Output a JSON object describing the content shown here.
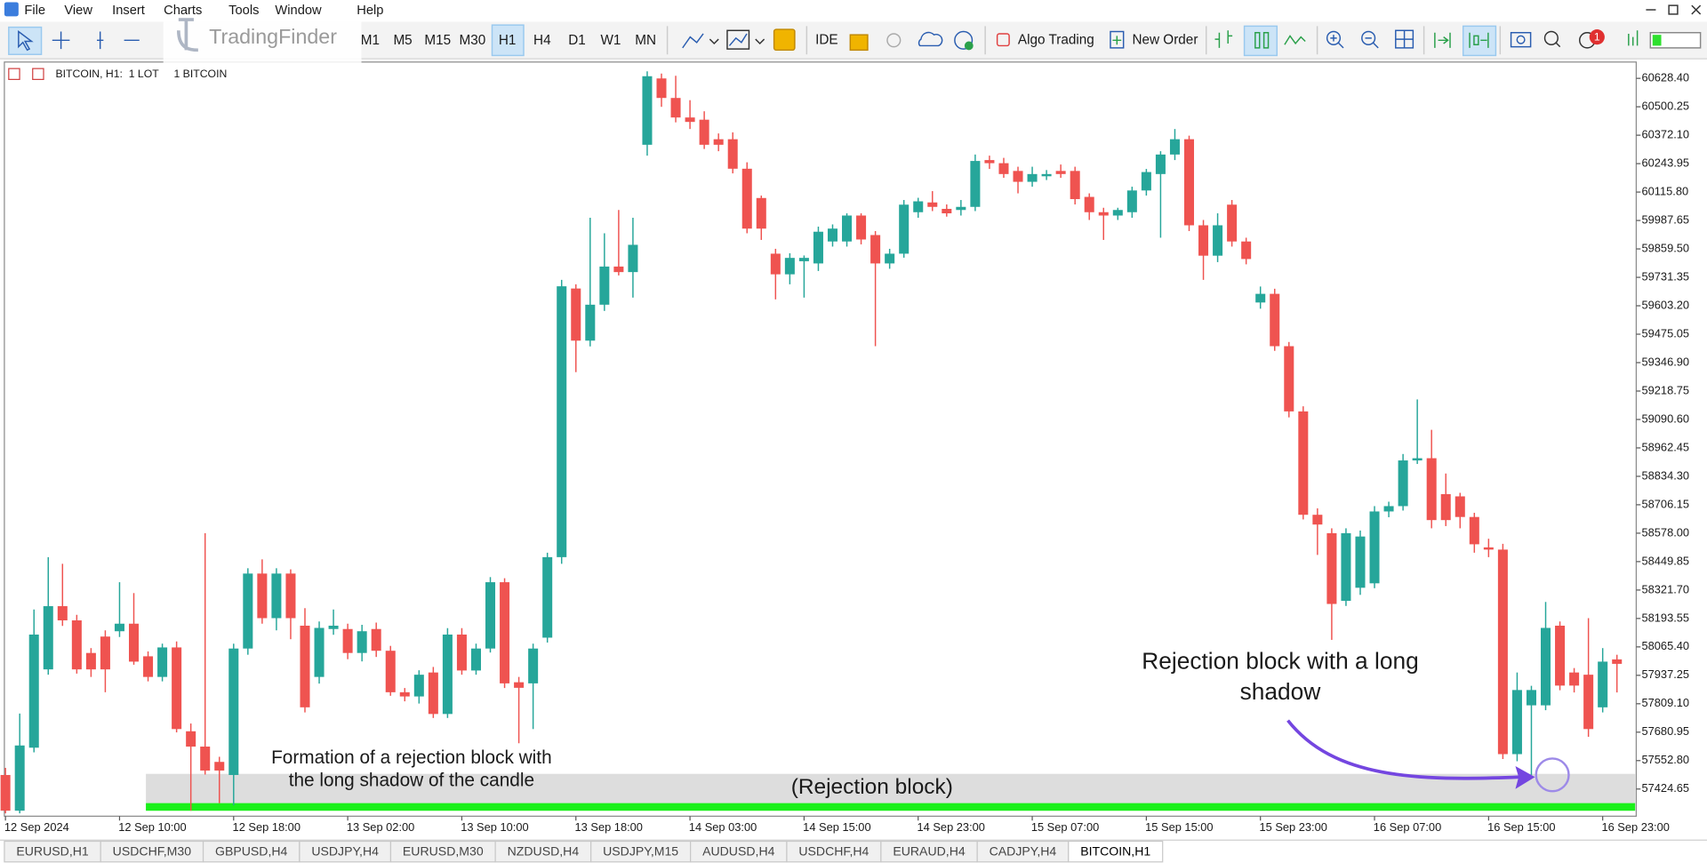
{
  "menu": [
    "File",
    "View",
    "Insert",
    "Charts",
    "Tools",
    "Window",
    "Help"
  ],
  "watermark": "TradingFinder",
  "toolbar": {
    "timeframes": [
      "M1",
      "M5",
      "M15",
      "M30",
      "H1",
      "H4",
      "D1",
      "W1",
      "MN"
    ],
    "ide": "IDE",
    "algo_trading": "Algo Trading",
    "new_order": "New Order",
    "notifications": 1
  },
  "tabs": [
    "EURUSD,H1",
    "USDCHF,M30",
    "GBPUSD,H4",
    "USDJPY,H4",
    "EURUSD,M30",
    "NZDUSD,H4",
    "USDJPY,M15",
    "AUDUSD,H4",
    "USDCHF,H4",
    "EURAUD,H4",
    "CADJPY,H4",
    "BITCOIN,H1"
  ],
  "chart_data": {
    "type": "candlestick",
    "header": "BITCOIN, H1:  1 LOT     1 BITCOIN",
    "up_color": "#26a69a",
    "down_color": "#ef5350",
    "grid": false,
    "ylim": [
      57310,
      60700
    ],
    "yticks": [
      {
        "value": 60628.4,
        "label": "60628.40"
      },
      {
        "value": 60500.25,
        "label": "60500.25"
      },
      {
        "value": 60372.1,
        "label": "60372.10"
      },
      {
        "value": 60243.95,
        "label": "60243.95"
      },
      {
        "value": 60115.8,
        "label": "60115.80"
      },
      {
        "value": 59987.65,
        "label": "59987.65"
      },
      {
        "value": 59859.5,
        "label": "59859.50"
      },
      {
        "value": 59731.35,
        "label": "59731.35"
      },
      {
        "value": 59603.2,
        "label": "59603.20"
      },
      {
        "value": 59475.05,
        "label": "59475.05"
      },
      {
        "value": 59346.9,
        "label": "59346.90"
      },
      {
        "value": 59218.75,
        "label": "59218.75"
      },
      {
        "value": 59090.6,
        "label": "59090.60"
      },
      {
        "value": 58962.45,
        "label": "58962.45"
      },
      {
        "value": 58834.3,
        "label": "58834.30"
      },
      {
        "value": 58706.15,
        "label": "58706.15"
      },
      {
        "value": 58578,
        "label": "58578.00"
      },
      {
        "value": 58449.85,
        "label": "58449.85"
      },
      {
        "value": 58321.7,
        "label": "58321.70"
      },
      {
        "value": 58193.55,
        "label": "58193.55"
      },
      {
        "value": 58065.4,
        "label": "58065.40"
      },
      {
        "value": 57937.25,
        "label": "57937.25"
      },
      {
        "value": 57809.1,
        "label": "57809.10"
      },
      {
        "value": 57680.95,
        "label": "57680.95"
      },
      {
        "value": 57552.8,
        "label": "57552.80"
      },
      {
        "value": 57424.65,
        "label": "57424.65"
      }
    ],
    "categories": [
      "12 Sep 2024",
      null,
      null,
      null,
      null,
      null,
      null,
      null,
      "12 Sep 10:00",
      null,
      null,
      null,
      null,
      null,
      null,
      null,
      "12 Sep 18:00",
      null,
      null,
      null,
      null,
      null,
      null,
      null,
      "13 Sep 02:00",
      null,
      null,
      null,
      null,
      null,
      null,
      null,
      "13 Sep 10:00",
      null,
      null,
      null,
      null,
      null,
      null,
      null,
      "13 Sep 18:00",
      null,
      null,
      null,
      null,
      null,
      null,
      null,
      "14 Sep 03:00",
      null,
      null,
      null,
      null,
      null,
      null,
      null,
      "14 Sep 15:00",
      null,
      null,
      null,
      null,
      null,
      null,
      null,
      "14 Sep 23:00",
      null,
      null,
      null,
      null,
      null,
      null,
      null,
      "15 Sep 07:00",
      null,
      null,
      null,
      null,
      null,
      null,
      null,
      "15 Sep 15:00",
      null,
      null,
      null,
      null,
      null,
      null,
      null,
      "15 Sep 23:00",
      null,
      null,
      null,
      null,
      null,
      null,
      null,
      "16 Sep 07:00",
      null,
      null,
      null,
      null,
      null,
      null,
      null,
      "16 Sep 15:00",
      null,
      null,
      null,
      null,
      null,
      null,
      null,
      "16 Sep 23:00",
      null
    ],
    "open": [
      57488,
      57327,
      57611,
      57964,
      58249,
      58185,
      58038,
      58112,
      58136,
      58170,
      58023,
      57930,
      58063,
      57685,
      57616,
      57547,
      57488,
      58058,
      58396,
      58195,
      58396,
      58161,
      57930,
      58146,
      58146,
      58038,
      58146,
      58048,
      57861,
      57842,
      57950,
      57763,
      58121,
      57959,
      58058,
      58357,
      57906,
      57901,
      58107,
      58470,
      59681,
      59446,
      59608,
      59780,
      59755,
      60329,
      60628,
      60540,
      60452,
      60442,
      60354,
      60354,
      60221,
      60089,
      59838,
      59745,
      59804,
      59794,
      59893,
      59893,
      60010,
      59922,
      59794,
      59838,
      60025,
      60069,
      60040,
      60035,
      60049,
      60260,
      60246,
      60211,
      60162,
      60187,
      60211,
      60211,
      60094,
      60025,
      60010,
      60025,
      60123,
      60197,
      60285,
      60354,
      59966,
      59829,
      60059,
      59893,
      59618,
      59657,
      59421,
      59127,
      58661,
      58578,
      58273,
      58332,
      58352,
      58676,
      58700,
      58906,
      58916,
      58754,
      58744,
      58651,
      58514,
      58504,
      57582,
      57802,
      57802,
      58161,
      57950,
      57940,
      57793,
      58009
    ],
    "high": [
      57520,
      57765,
      58234,
      58470,
      58440,
      58210,
      58060,
      58140,
      58357,
      58308,
      58045,
      58080,
      58090,
      57720,
      58578,
      57570,
      58080,
      58420,
      58460,
      58420,
      58415,
      58240,
      58180,
      58234,
      58170,
      58165,
      58175,
      58070,
      57880,
      57960,
      57975,
      58150,
      58150,
      58080,
      58380,
      58375,
      57930,
      58080,
      58490,
      59720,
      59700,
      60000,
      59930,
      60035,
      60000,
      60660,
      60650,
      60640,
      60530,
      60480,
      60380,
      60385,
      60250,
      60100,
      59860,
      59840,
      59830,
      59960,
      59970,
      60020,
      60020,
      59940,
      59860,
      60080,
      60090,
      60120,
      60060,
      60080,
      60285,
      60280,
      60270,
      60230,
      60230,
      60215,
      60240,
      60230,
      60110,
      60045,
      60045,
      60140,
      60220,
      60300,
      60400,
      60370,
      59990,
      60020,
      60080,
      59910,
      59690,
      59680,
      59440,
      59150,
      58690,
      58600,
      58600,
      58590,
      58700,
      58720,
      58935,
      59181,
      59044,
      58847,
      58760,
      58670,
      58553,
      58530,
      57950,
      57890,
      58268,
      58180,
      57970,
      58195,
      58060,
      58030
    ],
    "low": [
      57315,
      57315,
      57590,
      57940,
      58160,
      57945,
      57930,
      57861,
      58110,
      57985,
      57910,
      57910,
      57680,
      57327,
      57490,
      57361,
      57351,
      58030,
      58170,
      58140,
      58100,
      57770,
      57900,
      58120,
      58010,
      58000,
      58020,
      57845,
      57820,
      57810,
      57745,
      57745,
      57940,
      57940,
      58040,
      57880,
      57631,
      57695,
      58085,
      58440,
      59304,
      59420,
      59580,
      59740,
      59640,
      60280,
      60500,
      60430,
      60400,
      60310,
      60300,
      60200,
      59930,
      59900,
      59632,
      59700,
      59640,
      59760,
      59870,
      59870,
      59880,
      59421,
      59770,
      59820,
      60000,
      60030,
      60005,
      60010,
      60030,
      60220,
      60180,
      60110,
      60140,
      60170,
      60180,
      60060,
      59990,
      59900,
      59990,
      60000,
      60100,
      59910,
      60260,
      59940,
      59720,
      59800,
      59870,
      59790,
      59590,
      59400,
      59100,
      58640,
      58480,
      58097,
      58250,
      58300,
      58330,
      58650,
      58680,
      58890,
      58600,
      58610,
      58600,
      58490,
      58470,
      57560,
      57550,
      57488,
      57780,
      57870,
      57860,
      57660,
      57770,
      57860
    ],
    "close": [
      57327,
      57621,
      58121,
      58249,
      58185,
      57964,
      57964,
      57964,
      58170,
      57999,
      57930,
      58063,
      57695,
      57616,
      57508,
      57508,
      58058,
      58396,
      58195,
      58396,
      58195,
      57793,
      58151,
      58161,
      58038,
      58136,
      58048,
      57861,
      57842,
      57940,
      57763,
      58121,
      57959,
      58058,
      58357,
      57901,
      57881,
      58058,
      58470,
      59691,
      59446,
      59608,
      59780,
      59755,
      59878,
      60638,
      60540,
      60452,
      60432,
      60329,
      60329,
      60221,
      59951,
      59951,
      59745,
      59819,
      59819,
      59937,
      59951,
      60010,
      59902,
      59794,
      59838,
      60059,
      60074,
      60049,
      60020,
      60049,
      60256,
      60246,
      60197,
      60162,
      60197,
      60197,
      60197,
      60084,
      60025,
      60010,
      60035,
      60123,
      60206,
      60285,
      60354,
      59966,
      59829,
      59966,
      59893,
      59814,
      59657,
      59421,
      59127,
      58661,
      58617,
      58259,
      58578,
      58563,
      58676,
      58700,
      58906,
      58916,
      58637,
      58637,
      58651,
      58528,
      58504,
      57582,
      57871,
      57871,
      58151,
      57891,
      57891,
      57695,
      57999,
      57989
    ],
    "rejection_block": {
      "label": "(Rejection block)",
      "range": [
        57330,
        57493
      ]
    },
    "annotations": [
      {
        "lines": [
          "Formation of a rejection block with",
          "the long shadow of the candle"
        ]
      },
      {
        "lines": [
          "Rejection block with a long",
          "shadow"
        ]
      }
    ]
  }
}
